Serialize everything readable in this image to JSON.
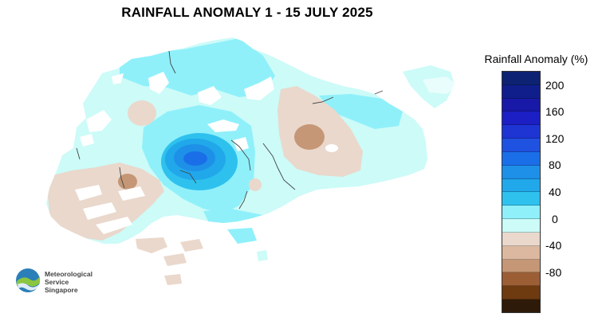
{
  "title": "RAINFALL ANOMALY 1 - 15 JULY 2025",
  "legend": {
    "title": "Rainfall Anomaly (%)",
    "swatches": [
      {
        "value": 220,
        "color": "#0d2272"
      },
      {
        "value": 200,
        "color": "#101e8c"
      },
      {
        "value": 180,
        "color": "#1919a8"
      },
      {
        "value": 160,
        "color": "#1c1fc4"
      },
      {
        "value": 140,
        "color": "#1e35d4"
      },
      {
        "value": 120,
        "color": "#1f52e0"
      },
      {
        "value": 100,
        "color": "#1a6fe8"
      },
      {
        "value": 80,
        "color": "#1e90e8"
      },
      {
        "value": 60,
        "color": "#20a8ea"
      },
      {
        "value": 40,
        "color": "#2ec1ee"
      },
      {
        "value": 20,
        "color": "#8ff0fa"
      },
      {
        "value": 0,
        "color": "#ccfbf8"
      },
      {
        "value": -20,
        "color": "#ead8cc"
      },
      {
        "value": -40,
        "color": "#dbb89f"
      },
      {
        "value": -60,
        "color": "#c59776"
      },
      {
        "value": -80,
        "color": "#9b5e35"
      },
      {
        "value": -100,
        "color": "#6e3a10"
      },
      {
        "value": -120,
        "color": "#2e1a08"
      }
    ],
    "labels": [
      "200",
      "160",
      "120",
      "80",
      "40",
      "0",
      "-40",
      "-80"
    ]
  },
  "logo": {
    "line1": "Meteorological",
    "line2": "Service",
    "line3": "Singapore"
  }
}
